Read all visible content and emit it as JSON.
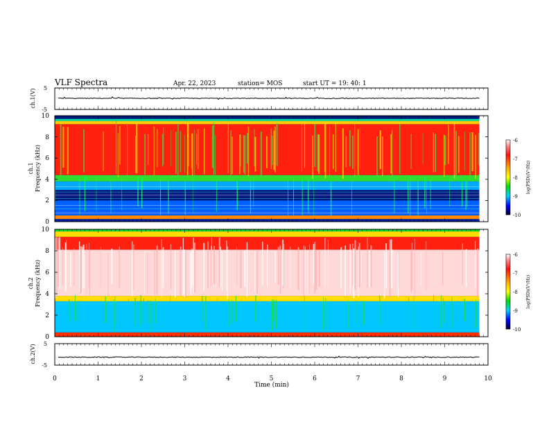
{
  "header": {
    "title": "VLF Spectra",
    "date": "Apr. 22, 2023",
    "station": "station= MOS",
    "start": "start  UT =  19: 40: 1"
  },
  "chart_data": [
    {
      "type": "line",
      "ylabel": "ch.1(V)",
      "ylim": [
        -5,
        5
      ],
      "yticks": [
        "5",
        "-5"
      ],
      "trace_level": 0.2
    },
    {
      "type": "heatmap",
      "ylabel_line1": "ch.1",
      "ylabel_line2": "Frequency (kHz)",
      "yticks": [
        "0",
        "2",
        "4",
        "6",
        "8",
        "10"
      ],
      "ylim": [
        0,
        10
      ],
      "strong_band_khz": [
        4,
        9.5
      ],
      "colorbar": {
        "ticks": [
          "-6",
          "-7",
          "-8",
          "-9",
          "-10"
        ],
        "label": "log(PSD)(V²/Hz)",
        "range": [
          -10,
          -6
        ]
      }
    },
    {
      "type": "heatmap",
      "ylabel_line1": "ch.2",
      "ylabel_line2": "Frequency (kHz)",
      "yticks": [
        "0",
        "2",
        "4",
        "6",
        "8",
        "10"
      ],
      "ylim": [
        0,
        10
      ],
      "strong_band_khz": [
        3.5,
        9.3
      ],
      "colorbar": {
        "ticks": [
          "-6",
          "-7",
          "-8",
          "-9",
          "-10"
        ],
        "label": "log(PSD)(V²/Hz)",
        "range": [
          -10,
          -6
        ]
      }
    },
    {
      "type": "line",
      "ylabel": "ch.2(V)",
      "ylim": [
        -5,
        5
      ],
      "yticks": [
        "5",
        "-5"
      ],
      "trace_level": -1.3
    }
  ],
  "xaxis": {
    "label": "Time (min)",
    "ticks": [
      "0",
      "1",
      "2",
      "3",
      "4",
      "5",
      "6",
      "7",
      "8",
      "9",
      "10"
    ],
    "xlim": [
      0,
      10
    ],
    "data_end_min": 9.8
  },
  "colors": {
    "background": "#000050",
    "low": "#0000ff",
    "mid": "#00e000",
    "high": "#ff2020",
    "saturated": "#ffffff"
  }
}
